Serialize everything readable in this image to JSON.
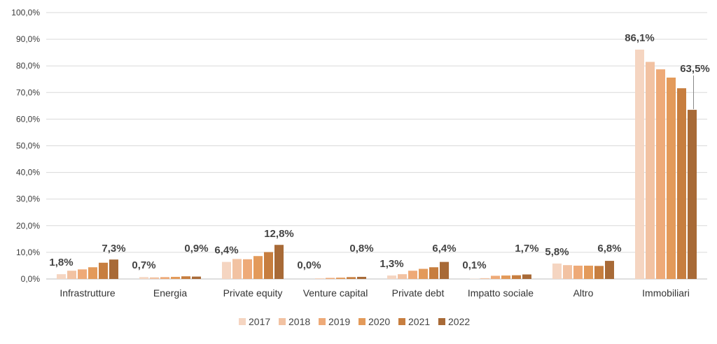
{
  "chart_data": {
    "type": "bar",
    "title": "",
    "xlabel": "",
    "ylabel": "",
    "ylim": [
      0,
      100
    ],
    "yticks": [
      "0,0%",
      "10,0%",
      "20,0%",
      "30,0%",
      "40,0%",
      "50,0%",
      "60,0%",
      "70,0%",
      "80,0%",
      "90,0%",
      "100,0%"
    ],
    "grid": true,
    "legend_position": "bottom",
    "categories": [
      "Infrastrutture",
      "Energia",
      "Private equity",
      "Venture capital",
      "Private debt",
      "Impatto sociale",
      "Altro",
      "Immobiliari"
    ],
    "series": [
      {
        "name": "2017",
        "color": "#f5d5c1",
        "values": [
          1.8,
          0.7,
          6.4,
          0.0,
          1.3,
          0.1,
          5.8,
          86.1
        ]
      },
      {
        "name": "2018",
        "color": "#f2c2a2",
        "values": [
          3.1,
          0.6,
          7.5,
          0.2,
          1.8,
          0.3,
          5.2,
          81.5
        ]
      },
      {
        "name": "2019",
        "color": "#eeaa78",
        "values": [
          3.6,
          0.7,
          7.4,
          0.4,
          3.1,
          1.2,
          5.0,
          78.7
        ]
      },
      {
        "name": "2020",
        "color": "#e39a5a",
        "values": [
          4.4,
          0.8,
          8.6,
          0.5,
          3.8,
          1.3,
          5.0,
          75.6
        ]
      },
      {
        "name": "2021",
        "color": "#c77e3f",
        "values": [
          6.1,
          1.0,
          10.1,
          0.7,
          4.4,
          1.4,
          4.9,
          71.6
        ]
      },
      {
        "name": "2022",
        "color": "#a86a37",
        "values": [
          7.3,
          0.9,
          12.8,
          0.8,
          6.4,
          1.7,
          6.8,
          63.5
        ]
      }
    ],
    "data_labels": [
      {
        "category": "Infrastrutture",
        "series": "2017",
        "text": "1,8%"
      },
      {
        "category": "Infrastrutture",
        "series": "2022",
        "text": "7,3%"
      },
      {
        "category": "Energia",
        "series": "2017",
        "text": "0,7%"
      },
      {
        "category": "Energia",
        "series": "2022",
        "text": "0,9%"
      },
      {
        "category": "Private equity",
        "series": "2017",
        "text": "6,4%"
      },
      {
        "category": "Private equity",
        "series": "2022",
        "text": "12,8%"
      },
      {
        "category": "Venture capital",
        "series": "2017",
        "text": "0,0%"
      },
      {
        "category": "Venture capital",
        "series": "2022",
        "text": "0,8%"
      },
      {
        "category": "Private debt",
        "series": "2017",
        "text": "1,3%"
      },
      {
        "category": "Private debt",
        "series": "2022",
        "text": "6,4%"
      },
      {
        "category": "Impatto sociale",
        "series": "2017",
        "text": "0,1%"
      },
      {
        "category": "Impatto sociale",
        "series": "2022",
        "text": "1,7%"
      },
      {
        "category": "Altro",
        "series": "2017",
        "text": "5,8%"
      },
      {
        "category": "Altro",
        "series": "2022",
        "text": "6,8%"
      },
      {
        "category": "Immobiliari",
        "series": "2017",
        "text": "86,1%"
      },
      {
        "category": "Immobiliari",
        "series": "2022",
        "text": "63,5%"
      }
    ]
  }
}
